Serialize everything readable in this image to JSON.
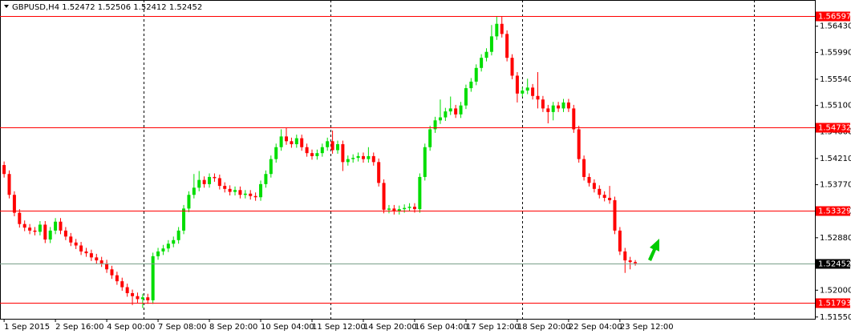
{
  "chart_data": {
    "type": "candlestick",
    "title": "GBPUSD,H4  1.52472 1.52506 1.52412 1.52452",
    "up_color": "#00dd00",
    "down_color": "#ff0000",
    "level_color": "#ff0000",
    "price_line_color": "#7aa08a",
    "xlim": [
      -0.8,
      158
    ],
    "ylim": [
      1.5152,
      1.5687
    ],
    "yticks": [
      {
        "value": 1.5643,
        "label": "1.56430"
      },
      {
        "value": 1.5599,
        "label": "1.55990"
      },
      {
        "value": 1.5554,
        "label": "1.55540"
      },
      {
        "value": 1.551,
        "label": "1.55100"
      },
      {
        "value": 1.5466,
        "label": "1.54660"
      },
      {
        "value": 1.5421,
        "label": "1.54210"
      },
      {
        "value": 1.5377,
        "label": "1.53770"
      },
      {
        "value": 1.5333,
        "label": "1.53330"
      },
      {
        "value": 1.5288,
        "label": "1.52880"
      },
      {
        "value": 1.5244,
        "label": "1.52440"
      },
      {
        "value": 1.52,
        "label": "1.52000"
      },
      {
        "value": 1.5155,
        "label": "1.51550"
      }
    ],
    "xticks": [
      {
        "value": 0,
        "label": "1 Sep 2015"
      },
      {
        "value": 10,
        "label": "2 Sep 16:00"
      },
      {
        "value": 20,
        "label": "4 Sep 00:00"
      },
      {
        "value": 30,
        "label": "7 Sep 08:00"
      },
      {
        "value": 40,
        "label": "8 Sep 20:00"
      },
      {
        "value": 50,
        "label": "10 Sep 04:00"
      },
      {
        "value": 60,
        "label": "11 Sep 12:00"
      },
      {
        "value": 70,
        "label": "14 Sep 20:00"
      },
      {
        "value": 80,
        "label": "16 Sep 04:00"
      },
      {
        "value": 90,
        "label": "17 Sep 12:00"
      },
      {
        "value": 100,
        "label": "18 Sep 20:00"
      },
      {
        "value": 110,
        "label": "22 Sep 04:00"
      },
      {
        "value": 120,
        "label": "23 Sep 12:00"
      }
    ],
    "levels": [
      1.56597,
      1.54732,
      1.53329,
      1.51793
    ],
    "price_line": 1.52452,
    "open": [
      1.541,
      1.5395,
      1.536,
      1.533,
      1.5311,
      1.5305,
      1.53,
      1.5298,
      1.531,
      1.5285,
      1.53,
      1.5315,
      1.53,
      1.529,
      1.528,
      1.5275,
      1.5265,
      1.5262,
      1.5255,
      1.525,
      1.5245,
      1.5235,
      1.5225,
      1.5215,
      1.5205,
      1.5195,
      1.519,
      1.5185,
      1.5188,
      1.5183,
      1.5257,
      1.5265,
      1.527,
      1.5278,
      1.5284,
      1.53,
      1.5337,
      1.536,
      1.5372,
      1.5385,
      1.5378,
      1.539,
      1.5388,
      1.5375,
      1.537,
      1.5365,
      1.5368,
      1.536,
      1.5362,
      1.5358,
      1.5356,
      1.5378,
      1.5395,
      1.542,
      1.544,
      1.5458,
      1.545,
      1.5445,
      1.5455,
      1.544,
      1.543,
      1.5425,
      1.543,
      1.544,
      1.545,
      1.5435,
      1.5445,
      1.5415,
      1.542,
      1.5422,
      1.5425,
      1.542,
      1.5425,
      1.5415,
      1.538,
      1.5335,
      1.5337,
      1.5333,
      1.5336,
      1.5338,
      1.534,
      1.5336,
      1.539,
      1.544,
      1.547,
      1.5485,
      1.549,
      1.55,
      1.5505,
      1.5495,
      1.551,
      1.5539,
      1.555,
      1.5573,
      1.559,
      1.56,
      1.5626,
      1.5647,
      1.563,
      1.559,
      1.556,
      1.553,
      1.5535,
      1.554,
      1.5526,
      1.552,
      1.5505,
      1.5499,
      1.551,
      1.5505,
      1.5515,
      1.5505,
      1.547,
      1.542,
      1.539,
      1.538,
      1.537,
      1.536,
      1.5355,
      1.5351,
      1.53,
      1.5265,
      1.525,
      1.52472
    ],
    "high": [
      1.5416,
      1.5401,
      1.5366,
      1.5336,
      1.5317,
      1.5311,
      1.5306,
      1.5316,
      1.5316,
      1.5306,
      1.5321,
      1.5321,
      1.5306,
      1.5296,
      1.5286,
      1.5281,
      1.5271,
      1.5268,
      1.5261,
      1.5256,
      1.5251,
      1.5241,
      1.5231,
      1.5221,
      1.5211,
      1.5201,
      1.5196,
      1.5194,
      1.5194,
      1.5263,
      1.5271,
      1.5276,
      1.5284,
      1.529,
      1.5306,
      1.5343,
      1.5366,
      1.5395,
      1.54,
      1.5391,
      1.5396,
      1.5396,
      1.5394,
      1.5381,
      1.5376,
      1.5374,
      1.5374,
      1.5368,
      1.5368,
      1.5364,
      1.5384,
      1.5401,
      1.5426,
      1.5446,
      1.547,
      1.5472,
      1.5456,
      1.5461,
      1.5461,
      1.5446,
      1.5436,
      1.5436,
      1.5446,
      1.5456,
      1.5468,
      1.5451,
      1.5451,
      1.5426,
      1.5428,
      1.5431,
      1.5431,
      1.544,
      1.5431,
      1.5421,
      1.5386,
      1.5343,
      1.5343,
      1.5342,
      1.5344,
      1.5346,
      1.5346,
      1.5396,
      1.5446,
      1.5476,
      1.5491,
      1.552,
      1.5506,
      1.5525,
      1.5511,
      1.5516,
      1.5545,
      1.5556,
      1.5579,
      1.5596,
      1.5606,
      1.5645,
      1.566,
      1.566,
      1.5636,
      1.5596,
      1.5566,
      1.5541,
      1.5555,
      1.5546,
      1.5566,
      1.5526,
      1.5511,
      1.5516,
      1.5516,
      1.5521,
      1.5521,
      1.5511,
      1.5476,
      1.5426,
      1.5396,
      1.5386,
      1.5376,
      1.5366,
      1.5375,
      1.5357,
      1.5306,
      1.5271,
      1.5256,
      1.52506
    ],
    "low": [
      1.5389,
      1.5354,
      1.5324,
      1.5305,
      1.5299,
      1.5294,
      1.5292,
      1.5292,
      1.5279,
      1.5279,
      1.5294,
      1.5294,
      1.5284,
      1.5274,
      1.5269,
      1.5259,
      1.5256,
      1.5249,
      1.5244,
      1.5239,
      1.5229,
      1.5219,
      1.5209,
      1.5199,
      1.5189,
      1.5175,
      1.5179,
      1.517,
      1.5177,
      1.5177,
      1.5251,
      1.5259,
      1.5264,
      1.5272,
      1.5278,
      1.5294,
      1.5331,
      1.5354,
      1.5366,
      1.5372,
      1.5372,
      1.5382,
      1.5369,
      1.5364,
      1.5359,
      1.5359,
      1.5354,
      1.5354,
      1.5352,
      1.535,
      1.535,
      1.5372,
      1.5389,
      1.5414,
      1.5434,
      1.5444,
      1.5439,
      1.5439,
      1.5434,
      1.5424,
      1.5419,
      1.5419,
      1.5424,
      1.5434,
      1.5429,
      1.5429,
      1.54,
      1.5409,
      1.5414,
      1.5416,
      1.5414,
      1.5414,
      1.5409,
      1.5374,
      1.5329,
      1.5329,
      1.5327,
      1.5327,
      1.533,
      1.5332,
      1.533,
      1.533,
      1.5384,
      1.5434,
      1.5464,
      1.5479,
      1.5484,
      1.5494,
      1.5489,
      1.5489,
      1.5504,
      1.5533,
      1.5544,
      1.5567,
      1.5584,
      1.5594,
      1.562,
      1.5624,
      1.5584,
      1.5554,
      1.5515,
      1.5524,
      1.5529,
      1.552,
      1.5505,
      1.5499,
      1.548,
      1.5485,
      1.5499,
      1.5499,
      1.5499,
      1.5464,
      1.5414,
      1.5384,
      1.5374,
      1.5364,
      1.5354,
      1.5349,
      1.5345,
      1.5294,
      1.5259,
      1.5229,
      1.5235,
      1.52412
    ],
    "close": [
      1.5395,
      1.536,
      1.533,
      1.5311,
      1.5305,
      1.53,
      1.5298,
      1.531,
      1.5285,
      1.53,
      1.5315,
      1.53,
      1.529,
      1.528,
      1.5275,
      1.5265,
      1.5262,
      1.5255,
      1.525,
      1.5245,
      1.5235,
      1.5225,
      1.5215,
      1.5205,
      1.5195,
      1.519,
      1.5185,
      1.5188,
      1.5183,
      1.5257,
      1.5265,
      1.527,
      1.5278,
      1.5284,
      1.53,
      1.5337,
      1.536,
      1.5372,
      1.5385,
      1.5378,
      1.539,
      1.5388,
      1.5375,
      1.537,
      1.5365,
      1.5368,
      1.536,
      1.5362,
      1.5358,
      1.5356,
      1.5378,
      1.5395,
      1.542,
      1.544,
      1.5458,
      1.545,
      1.5445,
      1.5455,
      1.544,
      1.543,
      1.5425,
      1.543,
      1.544,
      1.545,
      1.5435,
      1.5445,
      1.5415,
      1.542,
      1.5422,
      1.5425,
      1.542,
      1.5425,
      1.5415,
      1.538,
      1.5335,
      1.5337,
      1.5333,
      1.5336,
      1.5338,
      1.534,
      1.5336,
      1.539,
      1.544,
      1.547,
      1.5485,
      1.549,
      1.55,
      1.5505,
      1.5495,
      1.551,
      1.5539,
      1.555,
      1.5573,
      1.559,
      1.56,
      1.5626,
      1.5647,
      1.563,
      1.559,
      1.556,
      1.553,
      1.5535,
      1.554,
      1.5526,
      1.552,
      1.5505,
      1.5499,
      1.551,
      1.5505,
      1.5515,
      1.5505,
      1.547,
      1.542,
      1.539,
      1.538,
      1.537,
      1.536,
      1.5355,
      1.5351,
      1.53,
      1.5265,
      1.525,
      1.52472,
      1.52452
    ]
  }
}
